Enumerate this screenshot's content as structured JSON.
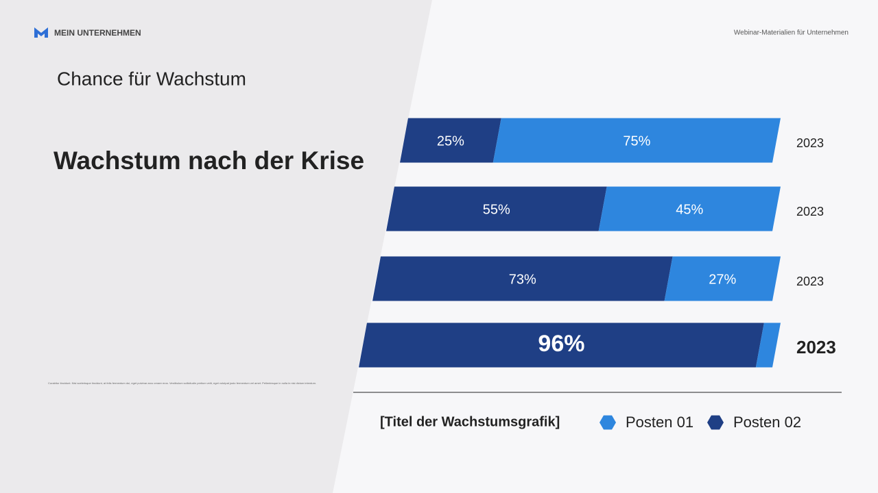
{
  "header": {
    "brand": "MEIN UNTERNEHMEN",
    "tagline": "Webinar-Materialien für Unternehmen"
  },
  "subtitle": "Chance für Wachstum",
  "headline": "Wachstum nach der Krise",
  "footnote": "Curabitur tincidunt. Nisi scelerisque tincidunt, at felis fermentum dui, eget pulvinar arcu ornare eros. Vestibulum sollicitudin pretium velit, eget volutpat justo fermentum vel amet. Pellentesque in nulla in nisi dictum interdum.",
  "chart_data": {
    "type": "stacked-bar",
    "orientation": "horizontal",
    "title": "[Titel der Wachstumsgrafik]",
    "categories": [
      "2023",
      "2023",
      "2023",
      "2023"
    ],
    "xlim": [
      0,
      100
    ],
    "series": [
      {
        "name": "Posten 02",
        "color": "#1f3f85",
        "values": [
          25,
          55,
          73,
          96
        ],
        "value_labels": [
          "25%",
          "55%",
          "73%",
          "96%"
        ]
      },
      {
        "name": "Posten 01",
        "color": "#2e86de",
        "values": [
          75,
          45,
          27,
          4
        ],
        "value_labels": [
          "75%",
          "45%",
          "27%",
          null
        ]
      }
    ]
  }
}
